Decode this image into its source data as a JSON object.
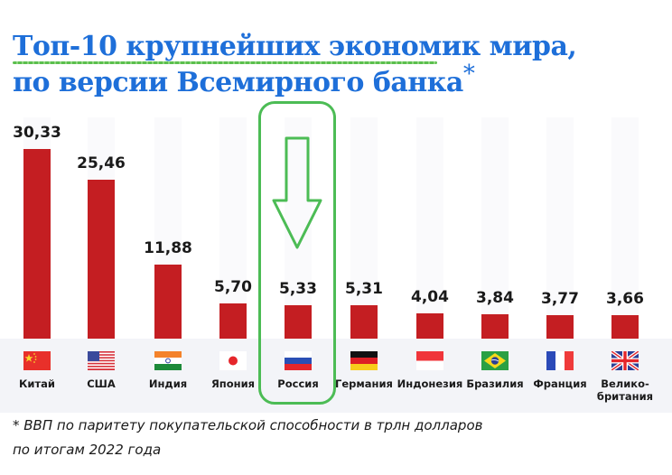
{
  "title": {
    "line1": "Топ-10 крупнейших экономик мира,",
    "line2": "по версии Всемирного банка",
    "asterisk": "*"
  },
  "footnote": {
    "line1": "* ВВП по паритету покупательской способности в трлн долларов",
    "line2": "по итогам 2022 года"
  },
  "highlight": {
    "country": "Россия",
    "color": "#4cbc55",
    "icon": "down-arrow-icon"
  },
  "colors": {
    "title": "#1e6fd9",
    "bar": "#c41e22",
    "highlight": "#4cbc55"
  },
  "bars": [
    {
      "country": "Китай",
      "value_label": "30,33",
      "flag": "china-flag-icon"
    },
    {
      "country": "США",
      "value_label": "25,46",
      "flag": "usa-flag-icon"
    },
    {
      "country": "Индия",
      "value_label": "11,88",
      "flag": "india-flag-icon"
    },
    {
      "country": "Япония",
      "value_label": "5,70",
      "flag": "japan-flag-icon"
    },
    {
      "country": "Россия",
      "value_label": "5,33",
      "flag": "russia-flag-icon"
    },
    {
      "country": "Германия",
      "value_label": "5,31",
      "flag": "germany-flag-icon"
    },
    {
      "country": "Индонезия",
      "value_label": "4,04",
      "flag": "indonesia-flag-icon"
    },
    {
      "country": "Бразилия",
      "value_label": "3,84",
      "flag": "brazil-flag-icon"
    },
    {
      "country": "Франция",
      "value_label": "3,77",
      "flag": "france-flag-icon"
    },
    {
      "country": "Велико-британия",
      "label_line1": "Велико-",
      "label_line2": "британия",
      "value_label": "3,66",
      "flag": "uk-flag-icon"
    }
  ],
  "chart_data": {
    "type": "bar",
    "title": "Топ-10 крупнейших экономик мира, по версии Всемирного банка*",
    "subtitle": "* ВВП по паритету покупательской способности в трлн долларов по итогам 2022 года",
    "categories": [
      "Китай",
      "США",
      "Индия",
      "Япония",
      "Россия",
      "Германия",
      "Индонезия",
      "Бразилия",
      "Франция",
      "Великобритания"
    ],
    "values": [
      30.33,
      25.46,
      11.88,
      5.7,
      5.33,
      5.31,
      4.04,
      3.84,
      3.77,
      3.66
    ],
    "xlabel": "",
    "ylabel": "трлн долларов (ППС)",
    "grid": false,
    "legend": "none",
    "highlighted_category": "Россия"
  }
}
